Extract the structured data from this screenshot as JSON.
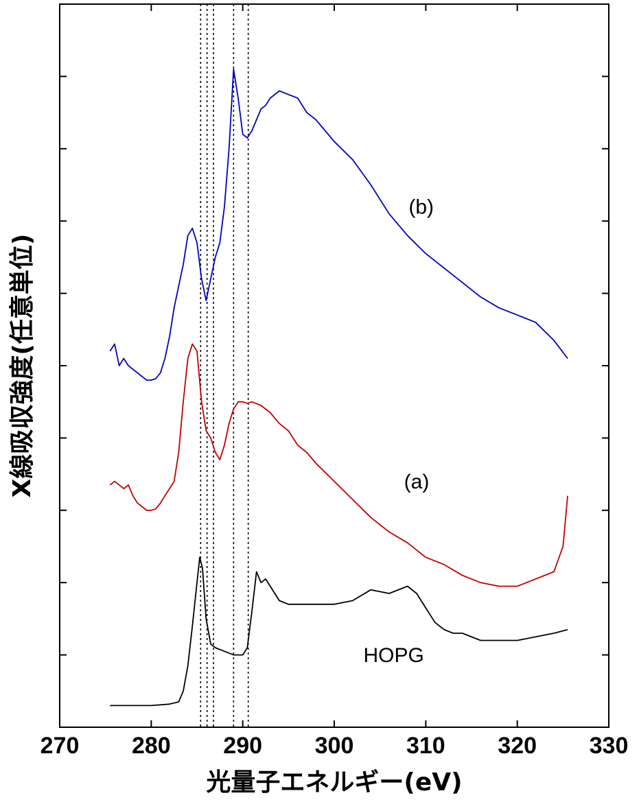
{
  "chart_data": {
    "type": "line",
    "title": "",
    "xlabel": "光量子エネルギー(eV)",
    "ylabel": "X線吸収強度(任意単位)",
    "xlim": [
      270,
      330
    ],
    "ylim": [
      0,
      10
    ],
    "x_ticks": [
      270,
      280,
      290,
      300,
      310,
      320,
      330
    ],
    "y_tick_count": 10,
    "grid": false,
    "legend": "none",
    "reference_lines_x": [
      285.4,
      286.1,
      286.8,
      289.0,
      290.6
    ],
    "annotations": [
      {
        "text": "(b)",
        "x": 309.5,
        "y": 7.1
      },
      {
        "text": "(a)",
        "x": 309.0,
        "y": 3.3
      },
      {
        "text": "HOPG",
        "x": 306.5,
        "y": 0.9
      }
    ],
    "series": [
      {
        "color": "#0000c0",
        "x": [
          275.5,
          276.0,
          276.5,
          277.0,
          277.5,
          278.0,
          278.5,
          279.0,
          279.5,
          280.0,
          280.5,
          281.0,
          281.5,
          282.0,
          282.5,
          283.0,
          283.5,
          284.0,
          284.5,
          285.0,
          285.5,
          286.0,
          286.5,
          287.0,
          287.5,
          288.0,
          288.5,
          289.0,
          289.5,
          290.0,
          290.5,
          291.0,
          291.5,
          292.0,
          292.5,
          293.0,
          294.0,
          295.0,
          296.0,
          297.0,
          298.0,
          299.0,
          300.0,
          302.0,
          304.0,
          306.0,
          308.0,
          310.0,
          312.0,
          314.0,
          316.0,
          318.0,
          320.0,
          322.0,
          324.0,
          325.5
        ],
        "y": [
          5.2,
          5.3,
          5.0,
          5.1,
          5.0,
          4.95,
          4.9,
          4.85,
          4.8,
          4.8,
          4.82,
          4.9,
          5.1,
          5.4,
          5.8,
          6.1,
          6.4,
          6.8,
          6.9,
          6.7,
          6.2,
          5.9,
          6.2,
          6.5,
          6.7,
          7.2,
          8.0,
          9.1,
          8.7,
          8.2,
          8.15,
          8.25,
          8.4,
          8.55,
          8.6,
          8.7,
          8.8,
          8.75,
          8.7,
          8.5,
          8.4,
          8.25,
          8.1,
          7.85,
          7.5,
          7.1,
          6.8,
          6.55,
          6.35,
          6.15,
          5.95,
          5.8,
          5.7,
          5.6,
          5.35,
          5.1
        ]
      },
      {
        "color": "#c00000",
        "x": [
          275.5,
          276.0,
          276.5,
          277.0,
          277.5,
          278.0,
          278.5,
          279.0,
          279.5,
          280.0,
          280.5,
          281.0,
          281.5,
          282.0,
          282.5,
          283.0,
          283.5,
          284.0,
          284.5,
          285.0,
          285.5,
          286.0,
          286.5,
          287.0,
          287.5,
          288.0,
          288.5,
          289.0,
          289.5,
          290.0,
          290.5,
          291.0,
          292.0,
          293.0,
          294.0,
          295.0,
          296.0,
          297.0,
          298.0,
          300.0,
          302.0,
          304.0,
          306.0,
          308.0,
          310.0,
          312.0,
          314.0,
          316.0,
          318.0,
          320.0,
          322.0,
          324.0,
          325.0,
          325.5
        ],
        "y": [
          3.35,
          3.4,
          3.35,
          3.3,
          3.35,
          3.2,
          3.1,
          3.05,
          3.0,
          3.0,
          3.02,
          3.1,
          3.2,
          3.3,
          3.4,
          3.8,
          4.5,
          5.1,
          5.3,
          5.2,
          4.5,
          4.1,
          4.0,
          3.8,
          3.7,
          3.9,
          4.2,
          4.4,
          4.5,
          4.5,
          4.48,
          4.5,
          4.45,
          4.35,
          4.2,
          4.1,
          3.9,
          3.8,
          3.65,
          3.4,
          3.15,
          2.9,
          2.7,
          2.55,
          2.35,
          2.25,
          2.1,
          2.0,
          1.95,
          1.95,
          2.05,
          2.15,
          2.5,
          3.2
        ]
      },
      {
        "color": "#000000",
        "x": [
          275.5,
          276.0,
          278.0,
          280.0,
          282.0,
          283.0,
          283.5,
          284.0,
          284.5,
          285.0,
          285.3,
          285.6,
          286.0,
          286.5,
          287.0,
          288.0,
          289.0,
          290.0,
          290.5,
          291.0,
          291.5,
          292.0,
          292.5,
          293.0,
          294.0,
          295.0,
          296.0,
          298.0,
          300.0,
          302.0,
          304.0,
          306.0,
          308.0,
          309.0,
          310.0,
          311.0,
          312.0,
          313.0,
          314.0,
          316.0,
          318.0,
          320.0,
          322.0,
          324.0,
          325.5
        ],
        "y": [
          0.3,
          0.3,
          0.3,
          0.3,
          0.32,
          0.35,
          0.5,
          0.85,
          1.4,
          2.0,
          2.35,
          2.2,
          1.5,
          1.15,
          1.1,
          1.05,
          1.0,
          1.0,
          1.1,
          1.6,
          2.15,
          2.0,
          2.05,
          1.95,
          1.75,
          1.7,
          1.7,
          1.7,
          1.7,
          1.75,
          1.9,
          1.85,
          1.95,
          1.85,
          1.65,
          1.45,
          1.35,
          1.3,
          1.3,
          1.2,
          1.2,
          1.2,
          1.25,
          1.3,
          1.35
        ]
      }
    ]
  }
}
